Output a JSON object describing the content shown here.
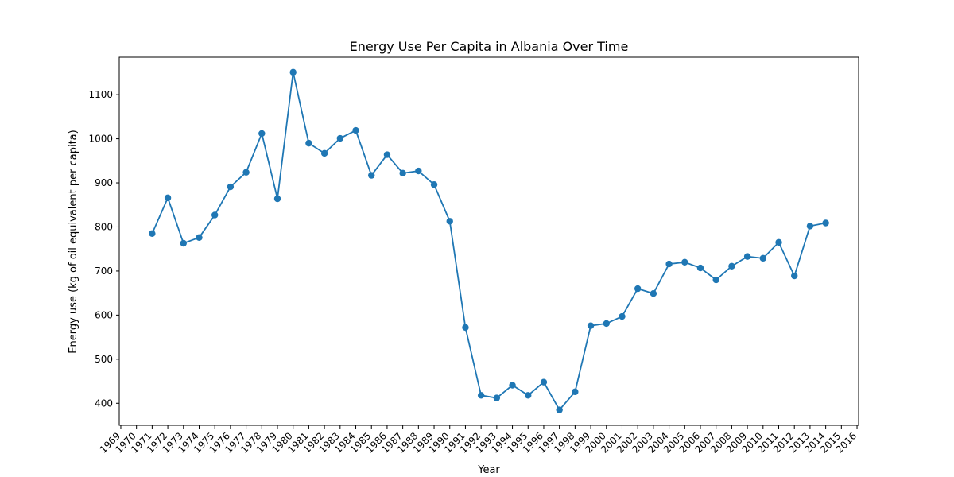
{
  "chart_data": {
    "type": "line",
    "title": "Energy Use Per Capita in Albania Over Time",
    "xlabel": "Year",
    "ylabel": "Energy use (kg of oil equivalent per capita)",
    "xlim": [
      1968.9,
      2016.1
    ],
    "ylim": [
      350,
      1185
    ],
    "x_ticks": [
      1969,
      1970,
      1971,
      1972,
      1973,
      1974,
      1975,
      1976,
      1977,
      1978,
      1979,
      1980,
      1981,
      1982,
      1983,
      1984,
      1985,
      1986,
      1987,
      1988,
      1989,
      1990,
      1991,
      1992,
      1993,
      1994,
      1995,
      1996,
      1997,
      1998,
      1999,
      2000,
      2001,
      2002,
      2003,
      2004,
      2005,
      2006,
      2007,
      2008,
      2009,
      2010,
      2011,
      2012,
      2013,
      2014,
      2015,
      2016
    ],
    "y_ticks": [
      400,
      500,
      600,
      700,
      800,
      900,
      1000,
      1100
    ],
    "grid": false,
    "color": "#1f77b4",
    "marker": "circle",
    "series": [
      {
        "x": [
          1971,
          1972,
          1973,
          1974,
          1975,
          1976,
          1977,
          1978,
          1979,
          1980,
          1981,
          1982,
          1983,
          1984,
          1985,
          1986,
          1987,
          1988,
          1989,
          1990,
          1991,
          1992,
          1993,
          1994,
          1995,
          1996,
          1997,
          1998,
          1999,
          2000,
          2001,
          2002,
          2003,
          2004,
          2005,
          2006,
          2007,
          2008,
          2009,
          2010,
          2011,
          2012,
          2013,
          2014
        ],
        "values": [
          785,
          866,
          763,
          776,
          827,
          891,
          924,
          1012,
          864,
          1151,
          990,
          967,
          1001,
          1019,
          917,
          964,
          922,
          927,
          896,
          813,
          572,
          418,
          412,
          441,
          418,
          448,
          385,
          426,
          576,
          581,
          597,
          660,
          649,
          716,
          720,
          707,
          680,
          711,
          733,
          729,
          765,
          689,
          802,
          809
        ]
      }
    ]
  }
}
